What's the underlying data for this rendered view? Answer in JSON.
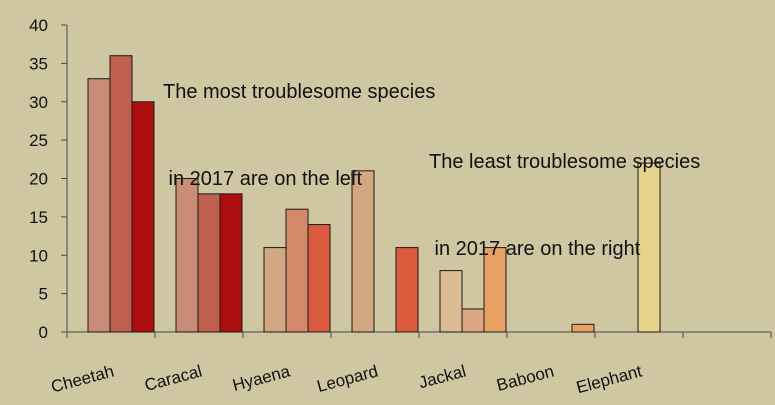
{
  "chart_data": {
    "type": "bar",
    "title": "",
    "xlabel": "",
    "ylabel": "",
    "ylim": [
      0,
      40
    ],
    "yticks": [
      0,
      5,
      10,
      15,
      20,
      25,
      30,
      35,
      40
    ],
    "grid": false,
    "legend": "none",
    "categories": [
      "Cheetah",
      "Caracal",
      "Hyaena",
      "Leopard",
      "Jackal",
      "Baboon",
      "Elephant"
    ],
    "bars": [
      {
        "category": "Cheetah",
        "slot": 0,
        "value": 33,
        "color": "#c98c77"
      },
      {
        "category": "Cheetah",
        "slot": 1,
        "value": 36,
        "color": "#bf6050"
      },
      {
        "category": "Cheetah",
        "slot": 2,
        "value": 30,
        "color": "#ad0f10"
      },
      {
        "category": "Caracal",
        "slot": 0,
        "value": 20,
        "color": "#c98c77"
      },
      {
        "category": "Caracal",
        "slot": 1,
        "value": 18,
        "color": "#bf6050"
      },
      {
        "category": "Caracal",
        "slot": 2,
        "value": 18,
        "color": "#ad0f10"
      },
      {
        "category": "Hyaena",
        "slot": 0,
        "value": 11,
        "color": "#d2a882"
      },
      {
        "category": "Hyaena",
        "slot": 1,
        "value": 16,
        "color": "#d4896a"
      },
      {
        "category": "Hyaena",
        "slot": 2,
        "value": 14,
        "color": "#d95a3d"
      },
      {
        "category": "Leopard",
        "slot": 0,
        "value": 21,
        "color": "#d2a882"
      },
      {
        "category": "Leopard",
        "slot": 2,
        "value": 11,
        "color": "#d95a3d"
      },
      {
        "category": "Jackal",
        "slot": 0,
        "value": 8,
        "color": "#dcbc94"
      },
      {
        "category": "Jackal",
        "slot": 1,
        "value": 3,
        "color": "#dca583"
      },
      {
        "category": "Jackal",
        "slot": 2,
        "value": 11,
        "color": "#e9a063"
      },
      {
        "category": "Baboon",
        "slot": 2,
        "value": 1,
        "color": "#e9a063"
      },
      {
        "category": "Elephant",
        "slot": 1,
        "value": 22,
        "color": "#e6d38a"
      }
    ],
    "annotations": [
      {
        "lines": [
          "The most troublesome species",
          " in 2017 are on the left"
        ]
      },
      {
        "lines": [
          "The least troublesome species",
          " in 2017 are on the right"
        ]
      }
    ],
    "colors": {
      "background": "#cfc6a2",
      "axis": "#4a4a4a",
      "bar_outline": "#1a1a1a",
      "text": "#111111"
    }
  }
}
